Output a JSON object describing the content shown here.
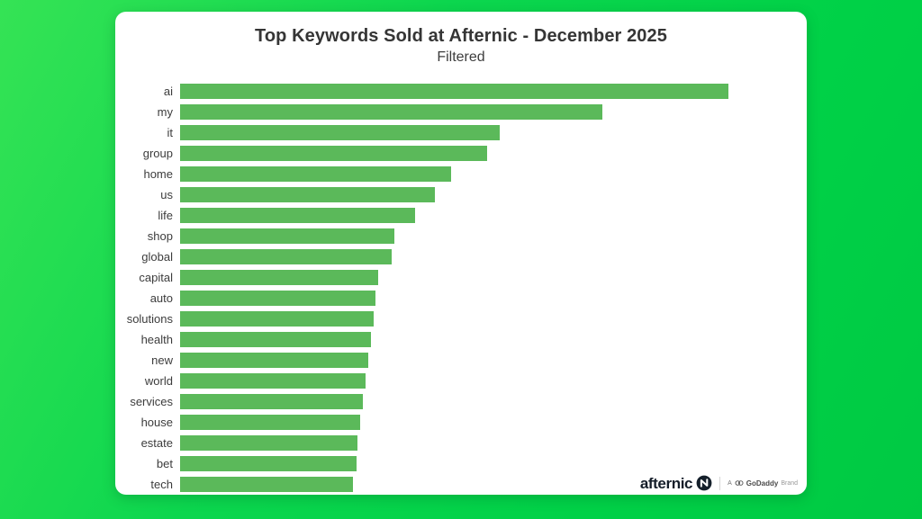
{
  "page": {
    "background_gradient": [
      "#35e355",
      "#0cd64e",
      "#00c943"
    ],
    "card_background": "#ffffff"
  },
  "header": {
    "title": "Top Keywords Sold at Afternic - December 2025",
    "subtitle": "Filtered"
  },
  "chart_data": {
    "type": "bar",
    "orientation": "horizontal",
    "title": "Top Keywords Sold at Afternic - December 2025",
    "subtitle": "Filtered",
    "xlabel": "",
    "ylabel": "",
    "grid": false,
    "value_axis_visible": false,
    "values_note": "No numeric axis or data labels shown in chart; values are relative bar lengths expressed as percent of the longest bar (ai = 100)",
    "bar_color": "#5bb95a",
    "label_color": "#3c3c3c",
    "xlim": [
      0,
      100
    ],
    "categories": [
      "ai",
      "my",
      "it",
      "group",
      "home",
      "us",
      "life",
      "shop",
      "global",
      "capital",
      "auto",
      "solutions",
      "health",
      "new",
      "world",
      "services",
      "house",
      "estate",
      "bet",
      "tech"
    ],
    "values": [
      100,
      77.0,
      58.3,
      56.0,
      49.4,
      46.5,
      42.9,
      39.1,
      38.6,
      36.1,
      35.6,
      35.3,
      34.8,
      34.3,
      33.8,
      33.3,
      32.8,
      32.3,
      32.2,
      31.5
    ]
  },
  "footer": {
    "brand": "afternic",
    "mark_color": "#15202b",
    "tagline_prefix": "A",
    "tagline_brand": "GoDaddy",
    "tagline_suffix": "Brand"
  }
}
